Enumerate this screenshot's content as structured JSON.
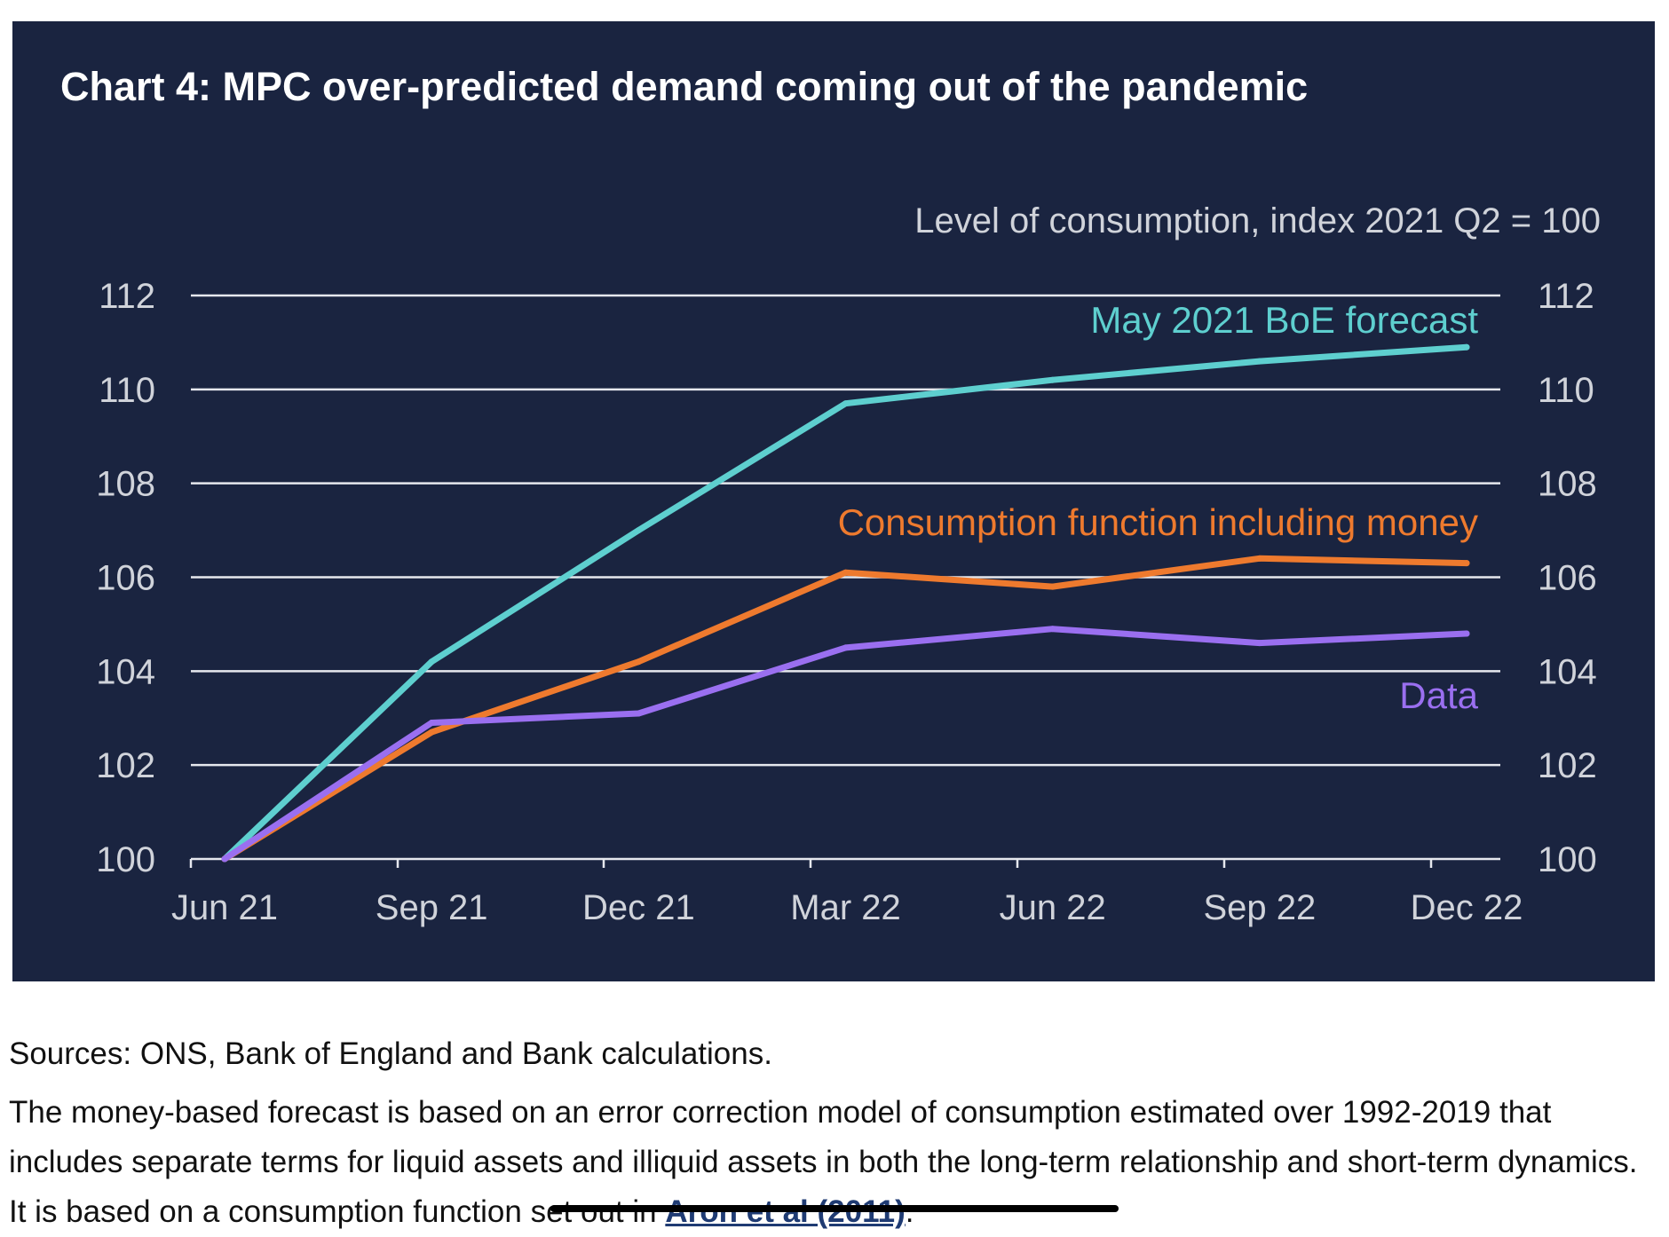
{
  "chart_data": {
    "type": "line",
    "title": "Chart 4: MPC over-predicted demand coming out of the pandemic",
    "ylabel": "Level of consumption, index 2021 Q2 = 100",
    "xlabel": "",
    "categories": [
      "Jun 21",
      "Sep 21",
      "Dec 21",
      "Mar 22",
      "Jun 22",
      "Sep 22",
      "Dec 22"
    ],
    "ylim": [
      100,
      112
    ],
    "yticks": [
      "100",
      "102",
      "104",
      "106",
      "108",
      "110",
      "112"
    ],
    "grid": true,
    "series": [
      {
        "name": "May 2021 BoE forecast",
        "color": "#5ecfcf",
        "values": [
          100,
          104.2,
          107.0,
          109.7,
          110.2,
          110.6,
          110.9
        ]
      },
      {
        "name": "Consumption function including money",
        "color": "#ee7a2e",
        "values": [
          100,
          102.7,
          104.2,
          106.1,
          105.8,
          106.4,
          106.3
        ]
      },
      {
        "name": "Data",
        "color": "#9a6ff0",
        "values": [
          100,
          102.9,
          103.1,
          104.5,
          104.9,
          104.6,
          104.8
        ]
      }
    ]
  },
  "notes": {
    "sources": "Sources: ONS, Bank of England and Bank calculations.",
    "body_text": "The money-based forecast is based on an error correction model of consumption estimated over 1992-2019 that includes separate terms for liquid assets and illiquid assets in both the long-term relationship and short-term dynamics. It is based on a consumption function set out in ",
    "citation": "Aron et al (2011)",
    "end": "."
  }
}
